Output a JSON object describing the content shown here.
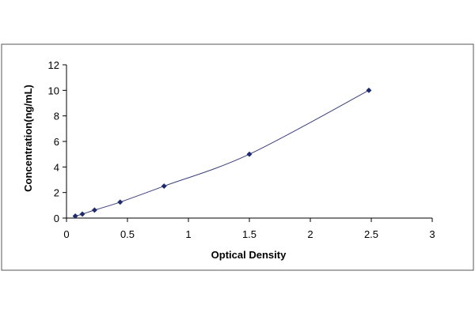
{
  "chart_data": {
    "type": "scatter",
    "title": "",
    "xlabel": "Optical Density",
    "ylabel": "Concentration(ng/mL)",
    "xlim": [
      0,
      3
    ],
    "ylim": [
      0,
      12
    ],
    "xticks": [
      0,
      0.5,
      1,
      1.5,
      2,
      2.5,
      3
    ],
    "xtick_labels": [
      "0",
      "0.5",
      "1",
      "1.5",
      "2",
      "2.5",
      "3"
    ],
    "yticks": [
      0,
      2,
      4,
      6,
      8,
      10,
      12
    ],
    "ytick_labels": [
      "0",
      "2",
      "4",
      "6",
      "8",
      "10",
      "12"
    ],
    "grid": false,
    "legend": "none",
    "marker_color": "#1f2a6b",
    "line_color": "#3a3f7a",
    "trendline": "smooth curve through points",
    "series": [
      {
        "x": [
          0.072,
          0.13,
          0.23,
          0.44,
          0.8,
          1.5,
          2.48
        ],
        "y": [
          0.156,
          0.312,
          0.625,
          1.25,
          2.5,
          5,
          10
        ]
      }
    ]
  }
}
